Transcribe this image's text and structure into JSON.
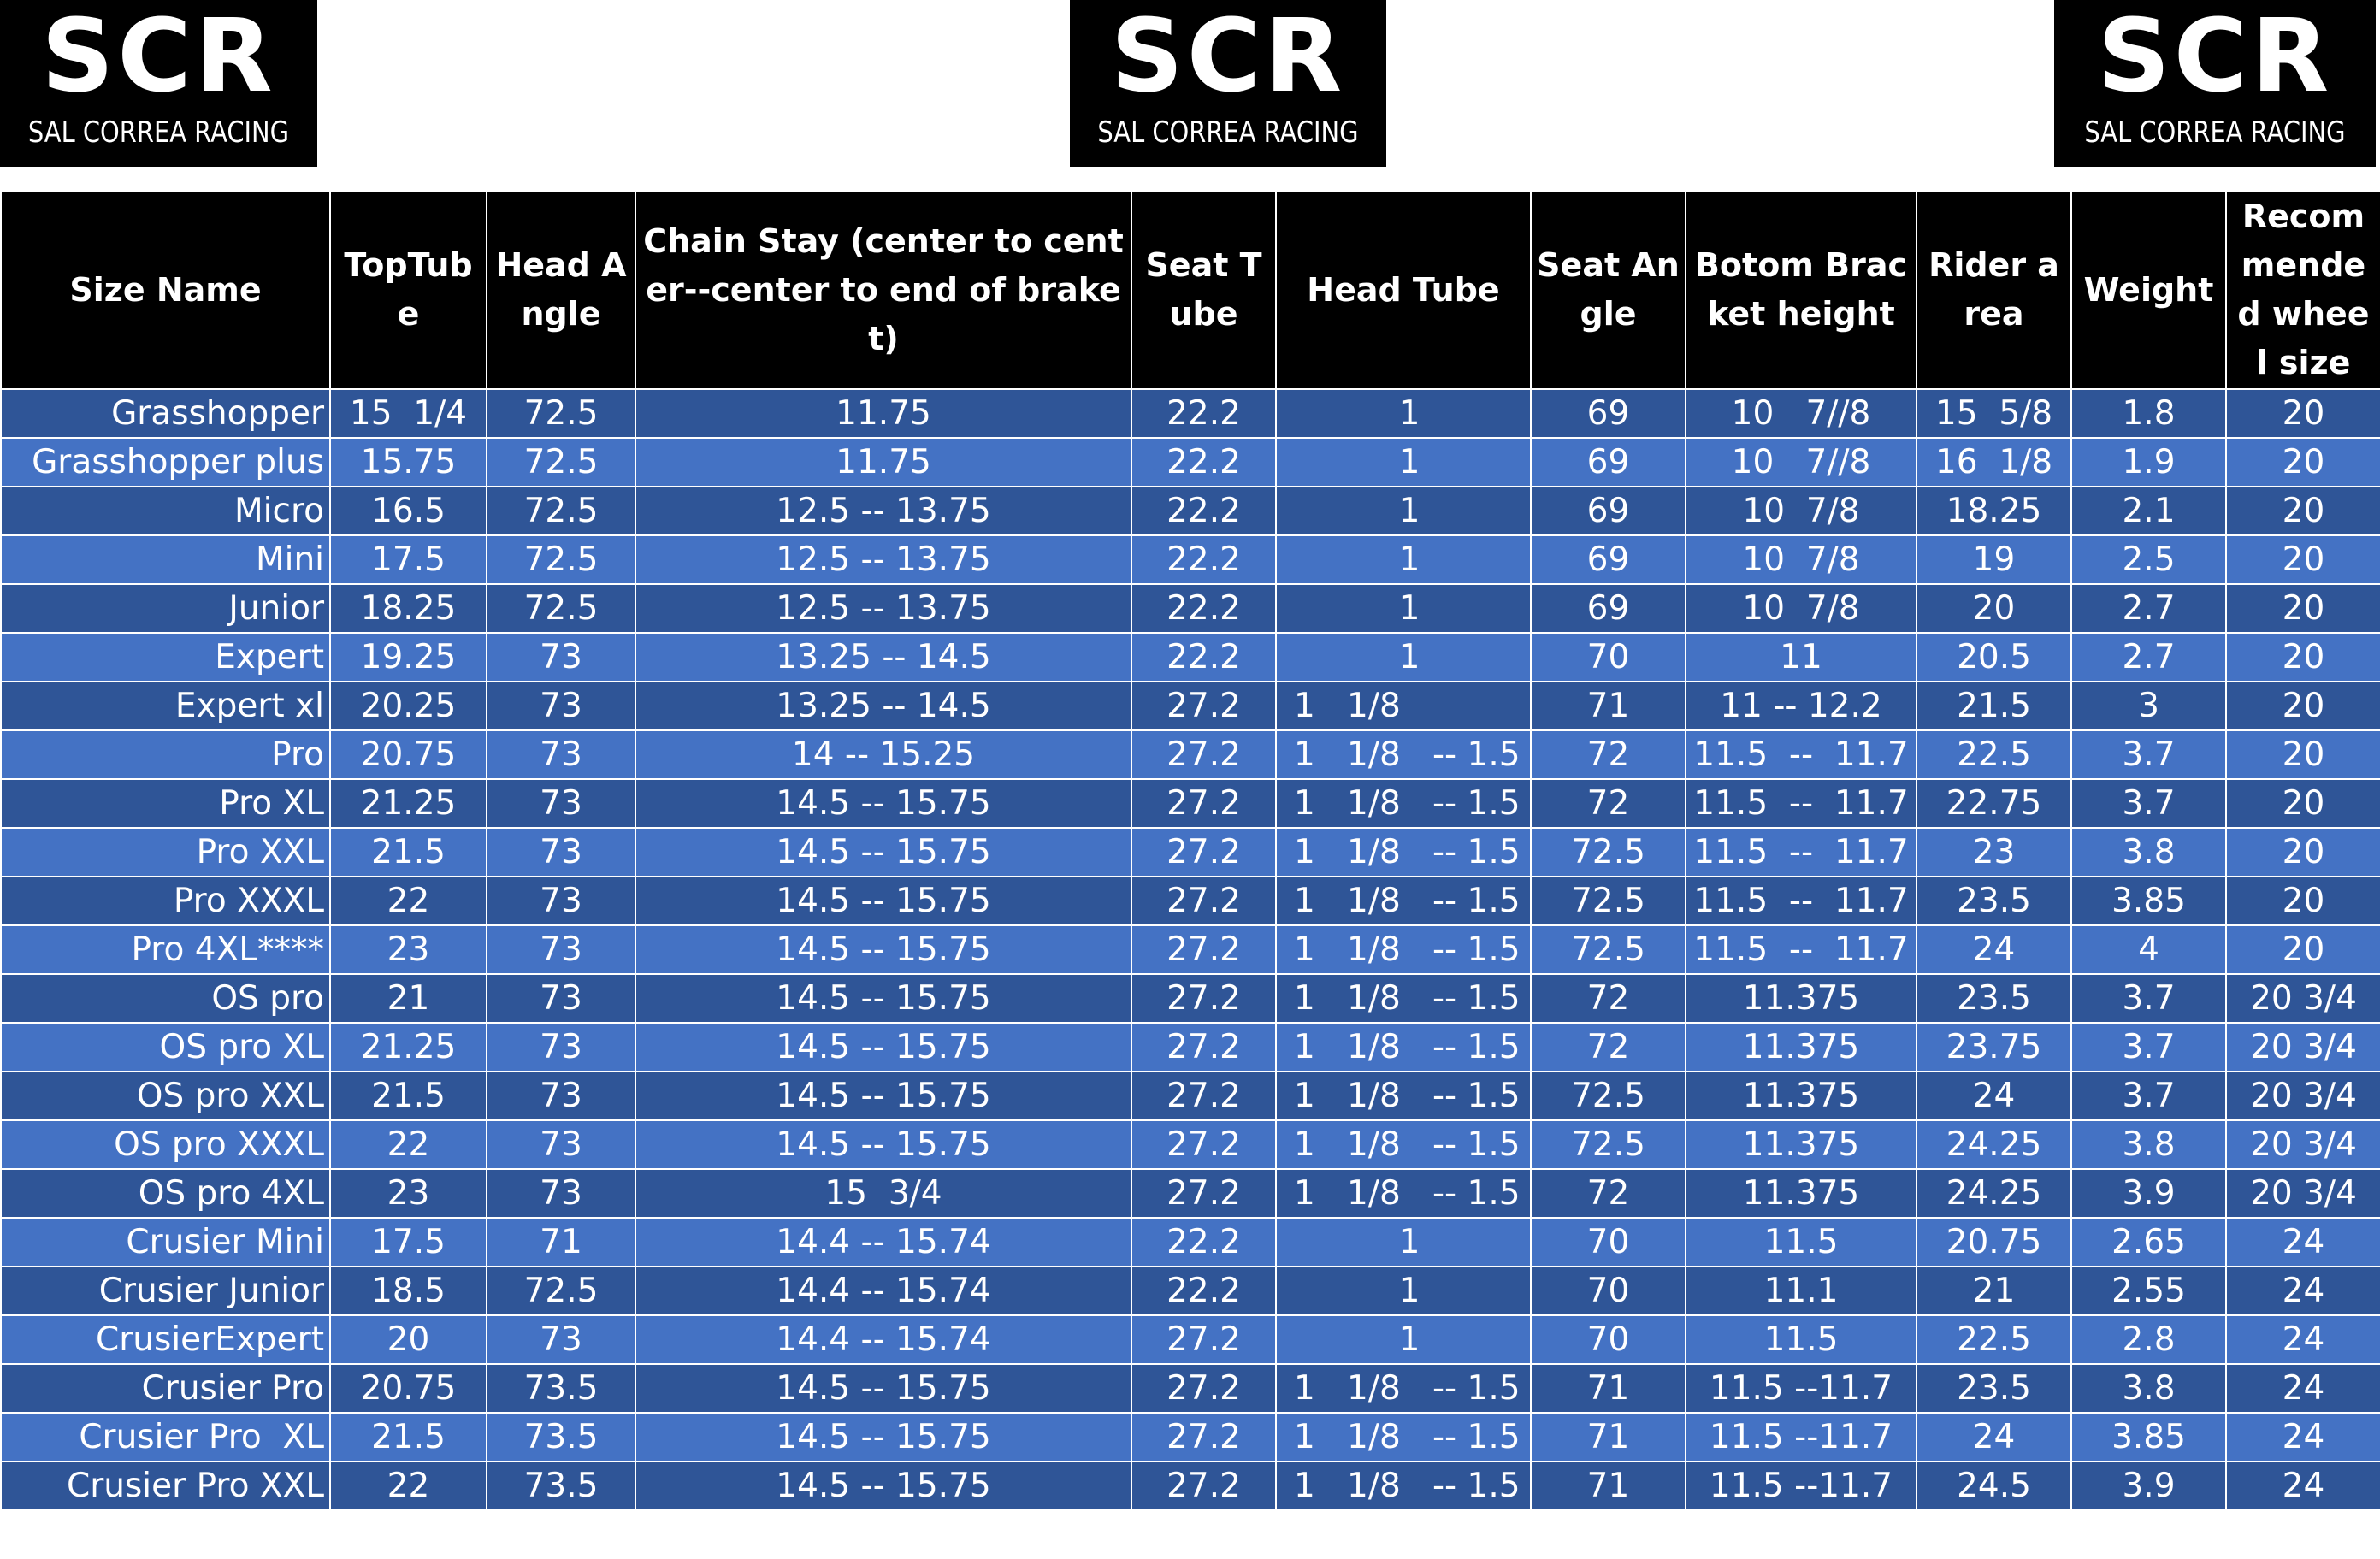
{
  "logo": {
    "mark": "SCR",
    "caption": "SAL CORREA RACING"
  },
  "table": {
    "headers": [
      "Size Name",
      "TopTube",
      "Head Angle",
      "Chain Stay (center to center--center to end of braket)",
      "Seat Tube",
      "Head Tube",
      "Seat Angle",
      "Botom Bracket height",
      "Rider area",
      "Weight",
      "Recommended wheel size"
    ],
    "rows": [
      [
        "Grasshopper",
        "15  1/4",
        "72.5",
        "11.75",
        "22.2",
        "1",
        "69",
        "10   7//8",
        "15  5/8",
        "1.8",
        "20"
      ],
      [
        "Grasshopper plus",
        "15.75",
        "72.5",
        "11.75",
        "22.2",
        "1",
        "69",
        "10   7//8",
        "16  1/8",
        "1.9",
        "20"
      ],
      [
        "Micro",
        "16.5",
        "72.5",
        "12.5 -- 13.75",
        "22.2",
        "1",
        "69",
        "10  7/8",
        "18.25",
        "2.1",
        "20"
      ],
      [
        "Mini",
        "17.5",
        "72.5",
        "12.5 -- 13.75",
        "22.2",
        "1",
        "69",
        "10  7/8",
        "19",
        "2.5",
        "20"
      ],
      [
        "Junior",
        "18.25",
        "72.5",
        "12.5 -- 13.75",
        "22.2",
        "1",
        "69",
        "10  7/8",
        "20",
        "2.7",
        "20"
      ],
      [
        "Expert",
        "19.25",
        "73",
        "13.25 -- 14.5",
        "22.2",
        "1",
        "70",
        "11",
        "20.5",
        "2.7",
        "20"
      ],
      [
        "Expert xl",
        "20.25",
        "73",
        "13.25 -- 14.5",
        "27.2",
        "1   1/8",
        "71",
        "11 -- 12.2",
        "21.5",
        "3",
        "20"
      ],
      [
        "Pro",
        "20.75",
        "73",
        "14 -- 15.25",
        "27.2",
        "1   1/8   -- 1.5",
        "72",
        "11.5  --  11.7",
        "22.5",
        "3.7",
        "20"
      ],
      [
        "Pro XL",
        "21.25",
        "73",
        "14.5 -- 15.75",
        "27.2",
        "1   1/8   -- 1.5",
        "72",
        "11.5  --  11.7",
        "22.75",
        "3.7",
        "20"
      ],
      [
        "Pro XXL",
        "21.5",
        "73",
        "14.5 -- 15.75",
        "27.2",
        "1   1/8   -- 1.5",
        "72.5",
        "11.5  --  11.7",
        "23",
        "3.8",
        "20"
      ],
      [
        "Pro XXXL",
        "22",
        "73",
        "14.5 -- 15.75",
        "27.2",
        "1   1/8   -- 1.5",
        "72.5",
        "11.5  --  11.7",
        "23.5",
        "3.85",
        "20"
      ],
      [
        "Pro 4XL****",
        "23",
        "73",
        "14.5 -- 15.75",
        "27.2",
        "1   1/8   -- 1.5",
        "72.5",
        "11.5  --  11.7",
        "24",
        "4",
        "20"
      ],
      [
        "OS pro",
        "21",
        "73",
        "14.5 -- 15.75",
        "27.2",
        "1   1/8   -- 1.5",
        "72",
        "11.375",
        "23.5",
        "3.7",
        "20 3/4"
      ],
      [
        "OS pro XL",
        "21.25",
        "73",
        "14.5 -- 15.75",
        "27.2",
        "1   1/8   -- 1.5",
        "72",
        "11.375",
        "23.75",
        "3.7",
        "20 3/4"
      ],
      [
        "OS pro XXL",
        "21.5",
        "73",
        "14.5 -- 15.75",
        "27.2",
        "1   1/8   -- 1.5",
        "72.5",
        "11.375",
        "24",
        "3.7",
        "20 3/4"
      ],
      [
        "OS pro XXXL",
        "22",
        "73",
        "14.5 -- 15.75",
        "27.2",
        "1   1/8   -- 1.5",
        "72.5",
        "11.375",
        "24.25",
        "3.8",
        "20 3/4"
      ],
      [
        "OS pro 4XL",
        "23",
        "73",
        "15  3/4",
        "27.2",
        "1   1/8   -- 1.5",
        "72",
        "11.375",
        "24.25",
        "3.9",
        "20 3/4"
      ],
      [
        "Crusier Mini",
        "17.5",
        "71",
        "14.4 -- 15.74",
        "22.2",
        "1",
        "70",
        "11.5",
        "20.75",
        "2.65",
        "24"
      ],
      [
        "Crusier Junior",
        "18.5",
        "72.5",
        "14.4 -- 15.74",
        "22.2",
        "1",
        "70",
        "11.1",
        "21",
        "2.55",
        "24"
      ],
      [
        "CrusierExpert",
        "20",
        "73",
        "14.4 -- 15.74",
        "27.2",
        "1",
        "70",
        "11.5",
        "22.5",
        "2.8",
        "24"
      ],
      [
        "Crusier Pro",
        "20.75",
        "73.5",
        "14.5 -- 15.75",
        "27.2",
        "1   1/8   -- 1.5",
        "71",
        "11.5 --11.7",
        "23.5",
        "3.8",
        "24"
      ],
      [
        "Crusier Pro  XL",
        "21.5",
        "73.5",
        "14.5 -- 15.75",
        "27.2",
        "1   1/8   -- 1.5",
        "71",
        "11.5 --11.7",
        "24",
        "3.85",
        "24"
      ],
      [
        "Crusier Pro XXL",
        "22",
        "73.5",
        "14.5 -- 15.75",
        "27.2",
        "1   1/8   -- 1.5",
        "71",
        "11.5 --11.7",
        "24.5",
        "3.9",
        "24"
      ]
    ]
  }
}
